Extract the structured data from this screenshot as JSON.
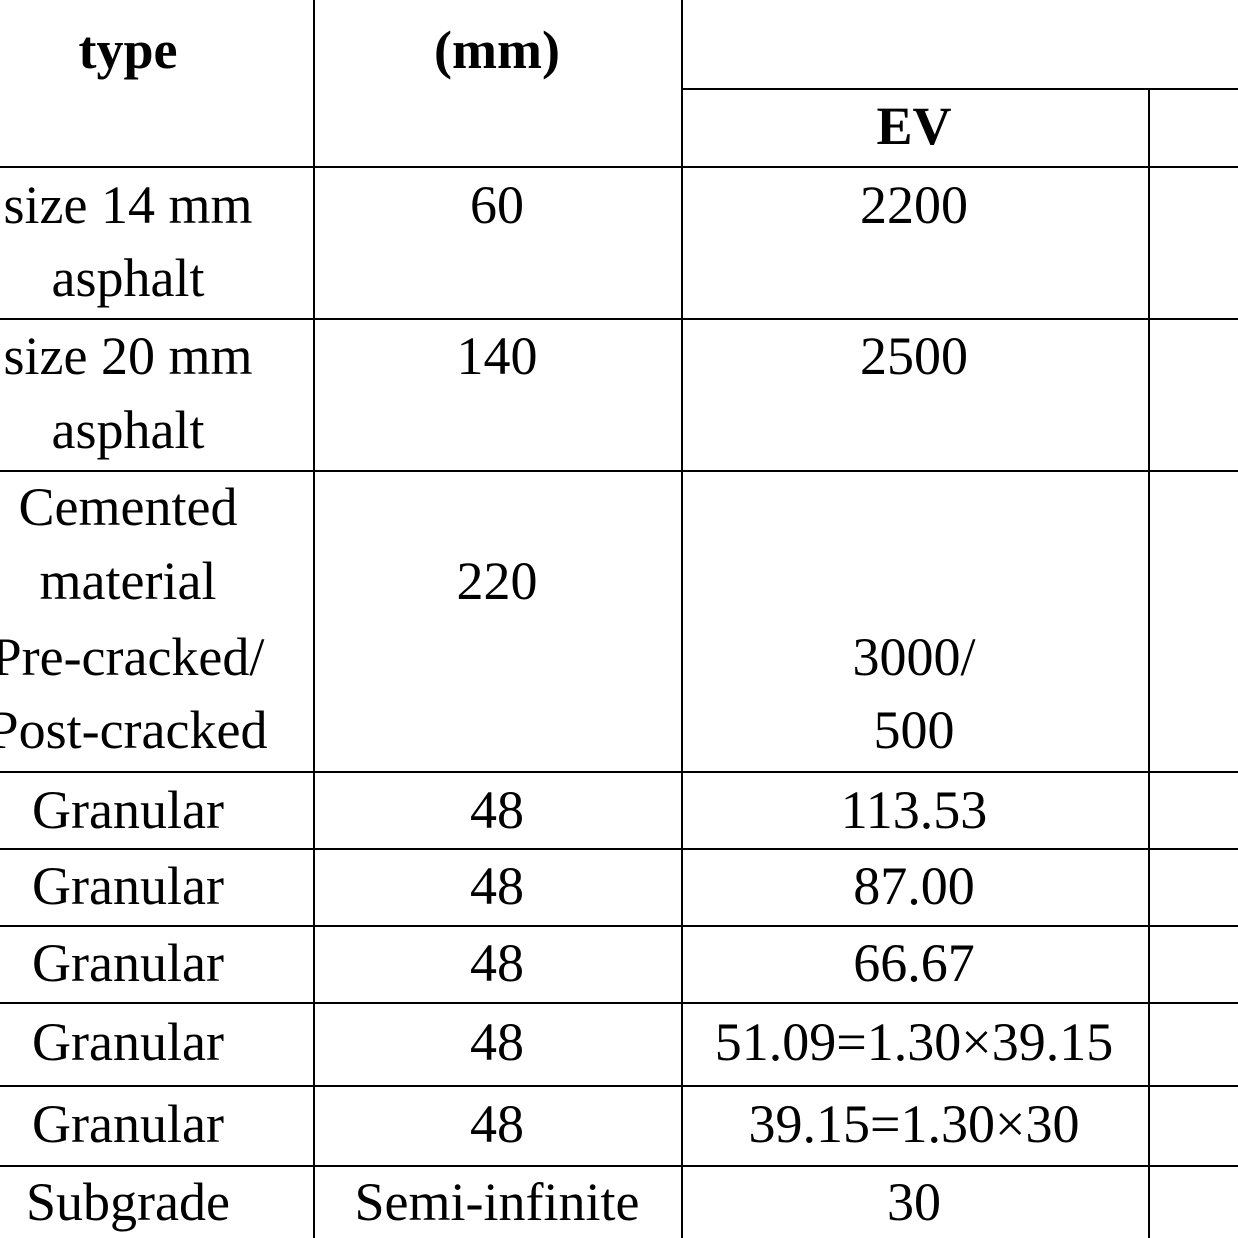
{
  "header": {
    "col1": "type",
    "col2": "(mm)",
    "col3_sub": "EV"
  },
  "rows": [
    {
      "type": [
        "size 14 mm",
        "asphalt"
      ],
      "thickness": "60",
      "ev": [
        "2200"
      ]
    },
    {
      "type": [
        "size 20 mm",
        "asphalt"
      ],
      "thickness": "140",
      "ev": [
        "2500"
      ]
    },
    {
      "type": [
        "Cemented",
        "material",
        "Pre-cracked/",
        "Post-cracked"
      ],
      "thickness": "220",
      "ev": [
        "3000/",
        "500"
      ]
    },
    {
      "type": [
        "Granular"
      ],
      "thickness": "48",
      "ev": [
        "113.53"
      ]
    },
    {
      "type": [
        "Granular"
      ],
      "thickness": "48",
      "ev": [
        "87.00"
      ]
    },
    {
      "type": [
        "Granular"
      ],
      "thickness": "48",
      "ev": [
        "66.67"
      ]
    },
    {
      "type": [
        "Granular"
      ],
      "thickness": "48",
      "ev": [
        "51.09=1.30×39.15"
      ]
    },
    {
      "type": [
        "Granular"
      ],
      "thickness": "48",
      "ev": [
        "39.15=1.30×30"
      ]
    },
    {
      "type": [
        "Subgrade"
      ],
      "thickness": "Semi-infinite",
      "ev": [
        "30"
      ]
    }
  ]
}
